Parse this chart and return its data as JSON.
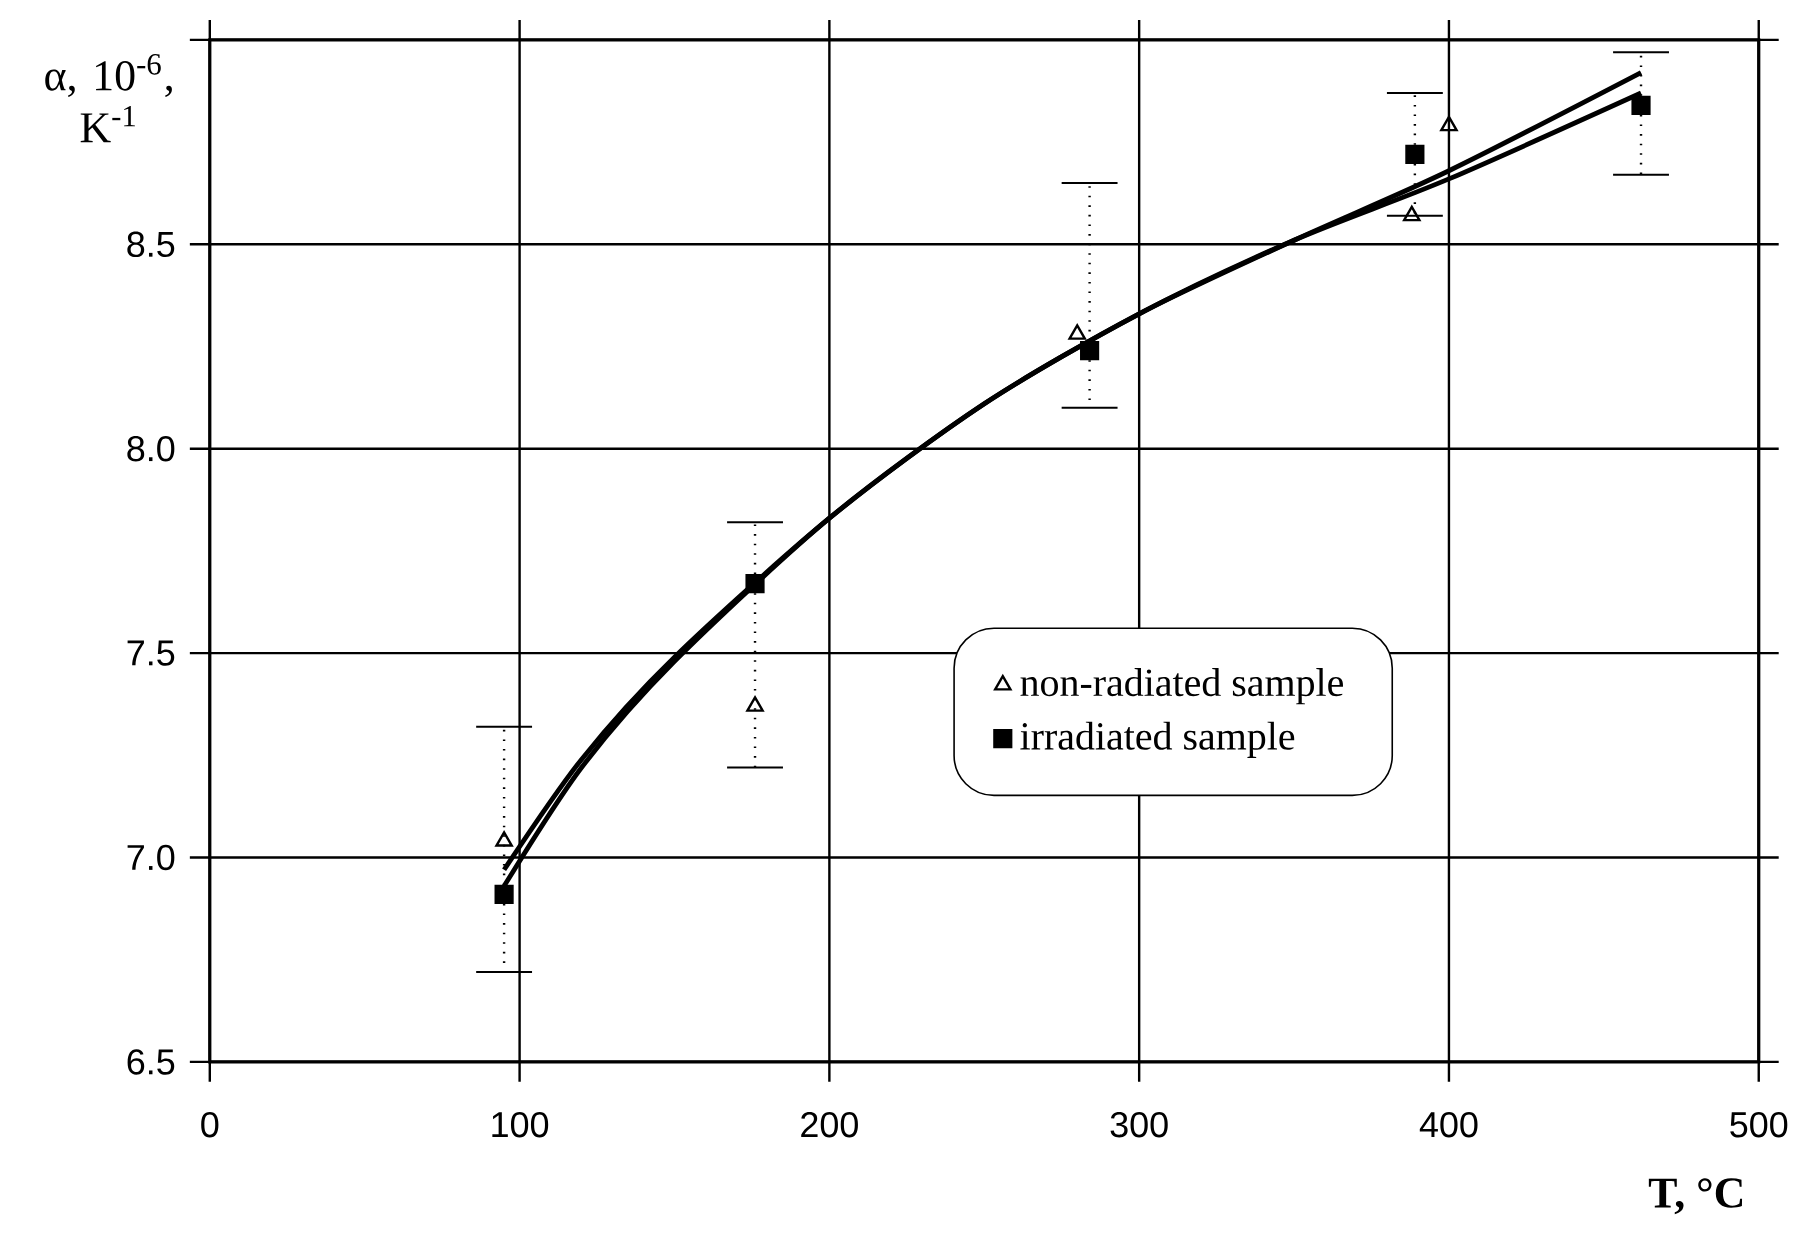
{
  "chart_data": {
    "type": "scatter",
    "xlabel": "**T, °C**",
    "ylabel": "α, 10$^{-6}$, K$^{-1}$",
    "xlim": [
      0,
      500
    ],
    "xticks": [
      0,
      100,
      200,
      300,
      400,
      500
    ],
    "ylim": [
      6.5,
      9.0
    ],
    "yticks": [
      6.5,
      {
        "value": 7.0,
        "label": "7.0"
      },
      7.5,
      {
        "value": 8.0,
        "label": "8.0"
      },
      8.5,
      {
        "value": 9.0,
        "label": null
      }
    ],
    "grid": true,
    "legend": "right",
    "series": [
      {
        "name": "non-radiated sample",
        "marker": "triangle",
        "color": "#000000",
        "x": [
          95,
          176,
          280,
          388,
          400
        ],
        "values": [
          7.04,
          7.37,
          8.28,
          8.57,
          8.79
        ]
      },
      {
        "name": "irradiated sample",
        "marker": "square",
        "color": "#000000",
        "x": [
          95,
          176,
          284,
          389,
          462
        ],
        "values": [
          6.91,
          7.67,
          8.24,
          8.72,
          8.84
        ],
        "errors": [
          [
            6.72,
            7.32
          ],
          [
            7.22,
            7.82
          ],
          [
            8.1,
            8.65
          ],
          [
            8.57,
            8.87
          ],
          [
            8.67,
            8.97
          ]
        ]
      },
      {
        "type": "line",
        "marker": "none",
        "color": "#000000",
        "x": [
          95,
          120,
          150,
          200,
          250,
          300,
          350,
          400,
          462
        ],
        "values": [
          6.93,
          7.22,
          7.48,
          7.83,
          8.11,
          8.33,
          8.51,
          8.68,
          8.92
        ]
      },
      {
        "type": "line",
        "marker": "none",
        "color": "#000000",
        "x": [
          95,
          120,
          150,
          200,
          250,
          300,
          350,
          400,
          462
        ],
        "values": [
          6.97,
          7.24,
          7.49,
          7.83,
          8.11,
          8.33,
          8.51,
          8.66,
          8.87
        ]
      }
    ]
  }
}
